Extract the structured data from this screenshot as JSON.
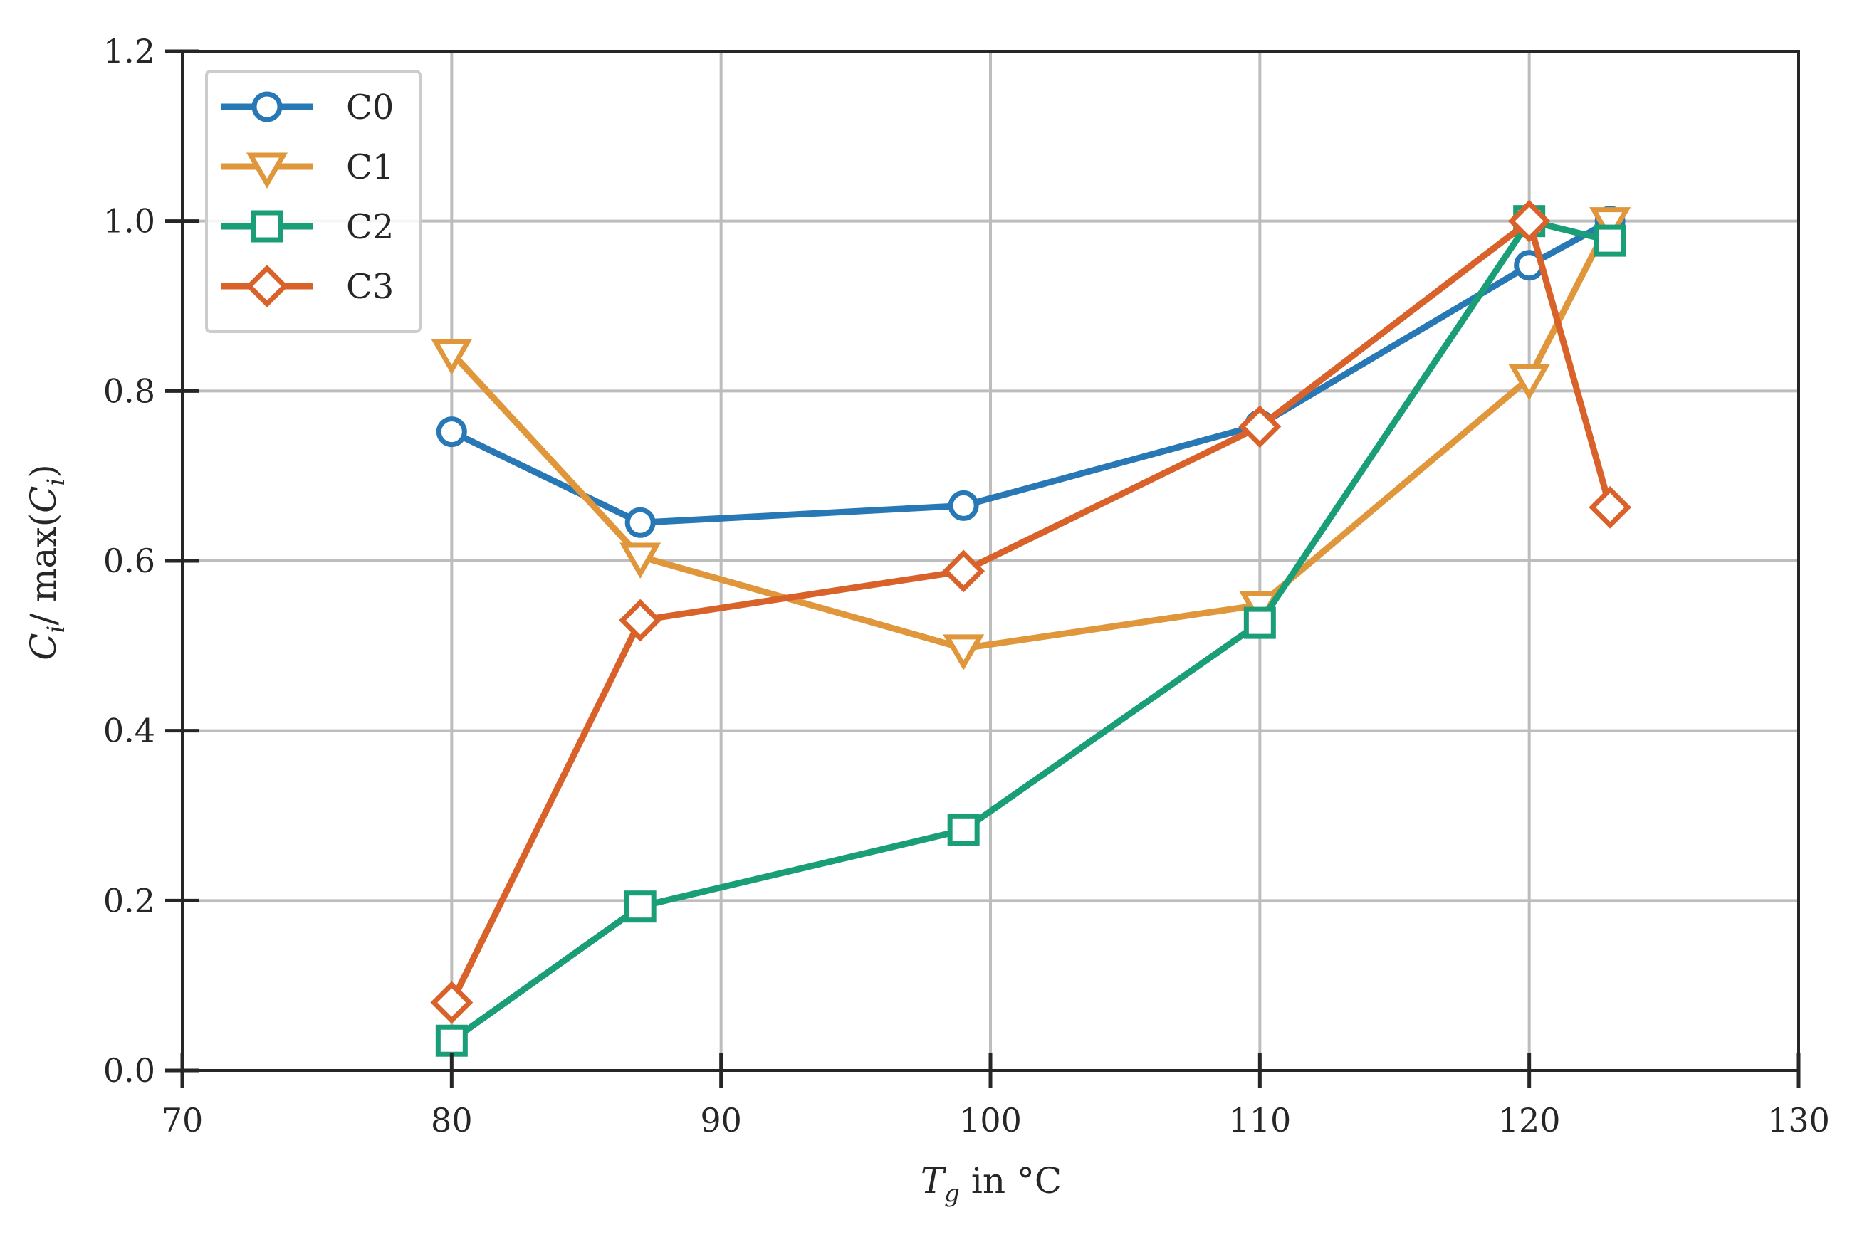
{
  "chart_data": {
    "type": "line",
    "title": "",
    "xlabel": "T_g in °C",
    "xlabel_parts": {
      "symbol": "T",
      "subscript": "g",
      "rest": "in °C"
    },
    "ylabel": "C_i / max(C_i)",
    "ylabel_parts": {
      "c1": "C",
      "s1": "i",
      "mid": "/ max(",
      "c2": "C",
      "s2": "i",
      "end": ")"
    },
    "xlim": [
      70,
      130
    ],
    "ylim": [
      0.0,
      1.2
    ],
    "xticks": [
      70,
      80,
      90,
      100,
      110,
      120,
      130
    ],
    "yticks": [
      0.0,
      0.2,
      0.4,
      0.6,
      0.8,
      1.0,
      1.2
    ],
    "xtick_labels": [
      "70",
      "80",
      "90",
      "100",
      "110",
      "120",
      "130"
    ],
    "ytick_labels": [
      "0.0",
      "0.2",
      "0.4",
      "0.6",
      "0.8",
      "1.0",
      "1.2"
    ],
    "grid": true,
    "legend_position": "top-left",
    "series": [
      {
        "name": "C0",
        "color": "#2878b5",
        "marker": "circle",
        "x": [
          80,
          87,
          99,
          110,
          120,
          123
        ],
        "y": [
          0.752,
          0.645,
          0.665,
          0.76,
          0.948,
          1.0
        ]
      },
      {
        "name": "C1",
        "color": "#e0963a",
        "marker": "triangle-down",
        "x": [
          80,
          87,
          99,
          110,
          120,
          123
        ],
        "y": [
          0.845,
          0.605,
          0.497,
          0.548,
          0.815,
          1.0
        ]
      },
      {
        "name": "C2",
        "color": "#1a9e77",
        "marker": "square",
        "x": [
          80,
          87,
          99,
          110,
          120,
          123
        ],
        "y": [
          0.035,
          0.193,
          0.283,
          0.527,
          1.0,
          0.977
        ]
      },
      {
        "name": "C3",
        "color": "#d9622b",
        "marker": "diamond",
        "x": [
          80,
          87,
          99,
          110,
          120,
          123
        ],
        "y": [
          0.08,
          0.53,
          0.588,
          0.758,
          1.0,
          0.663
        ]
      }
    ]
  }
}
